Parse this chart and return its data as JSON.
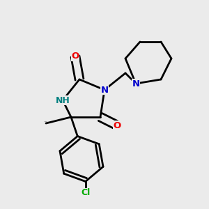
{
  "background_color": "#ebebeb",
  "bond_color": "#000000",
  "atom_colors": {
    "N": "#0000cc",
    "O": "#ee0000",
    "Cl": "#00aa00",
    "NH": "#008080",
    "C": "#000000"
  },
  "line_width": 2.0
}
